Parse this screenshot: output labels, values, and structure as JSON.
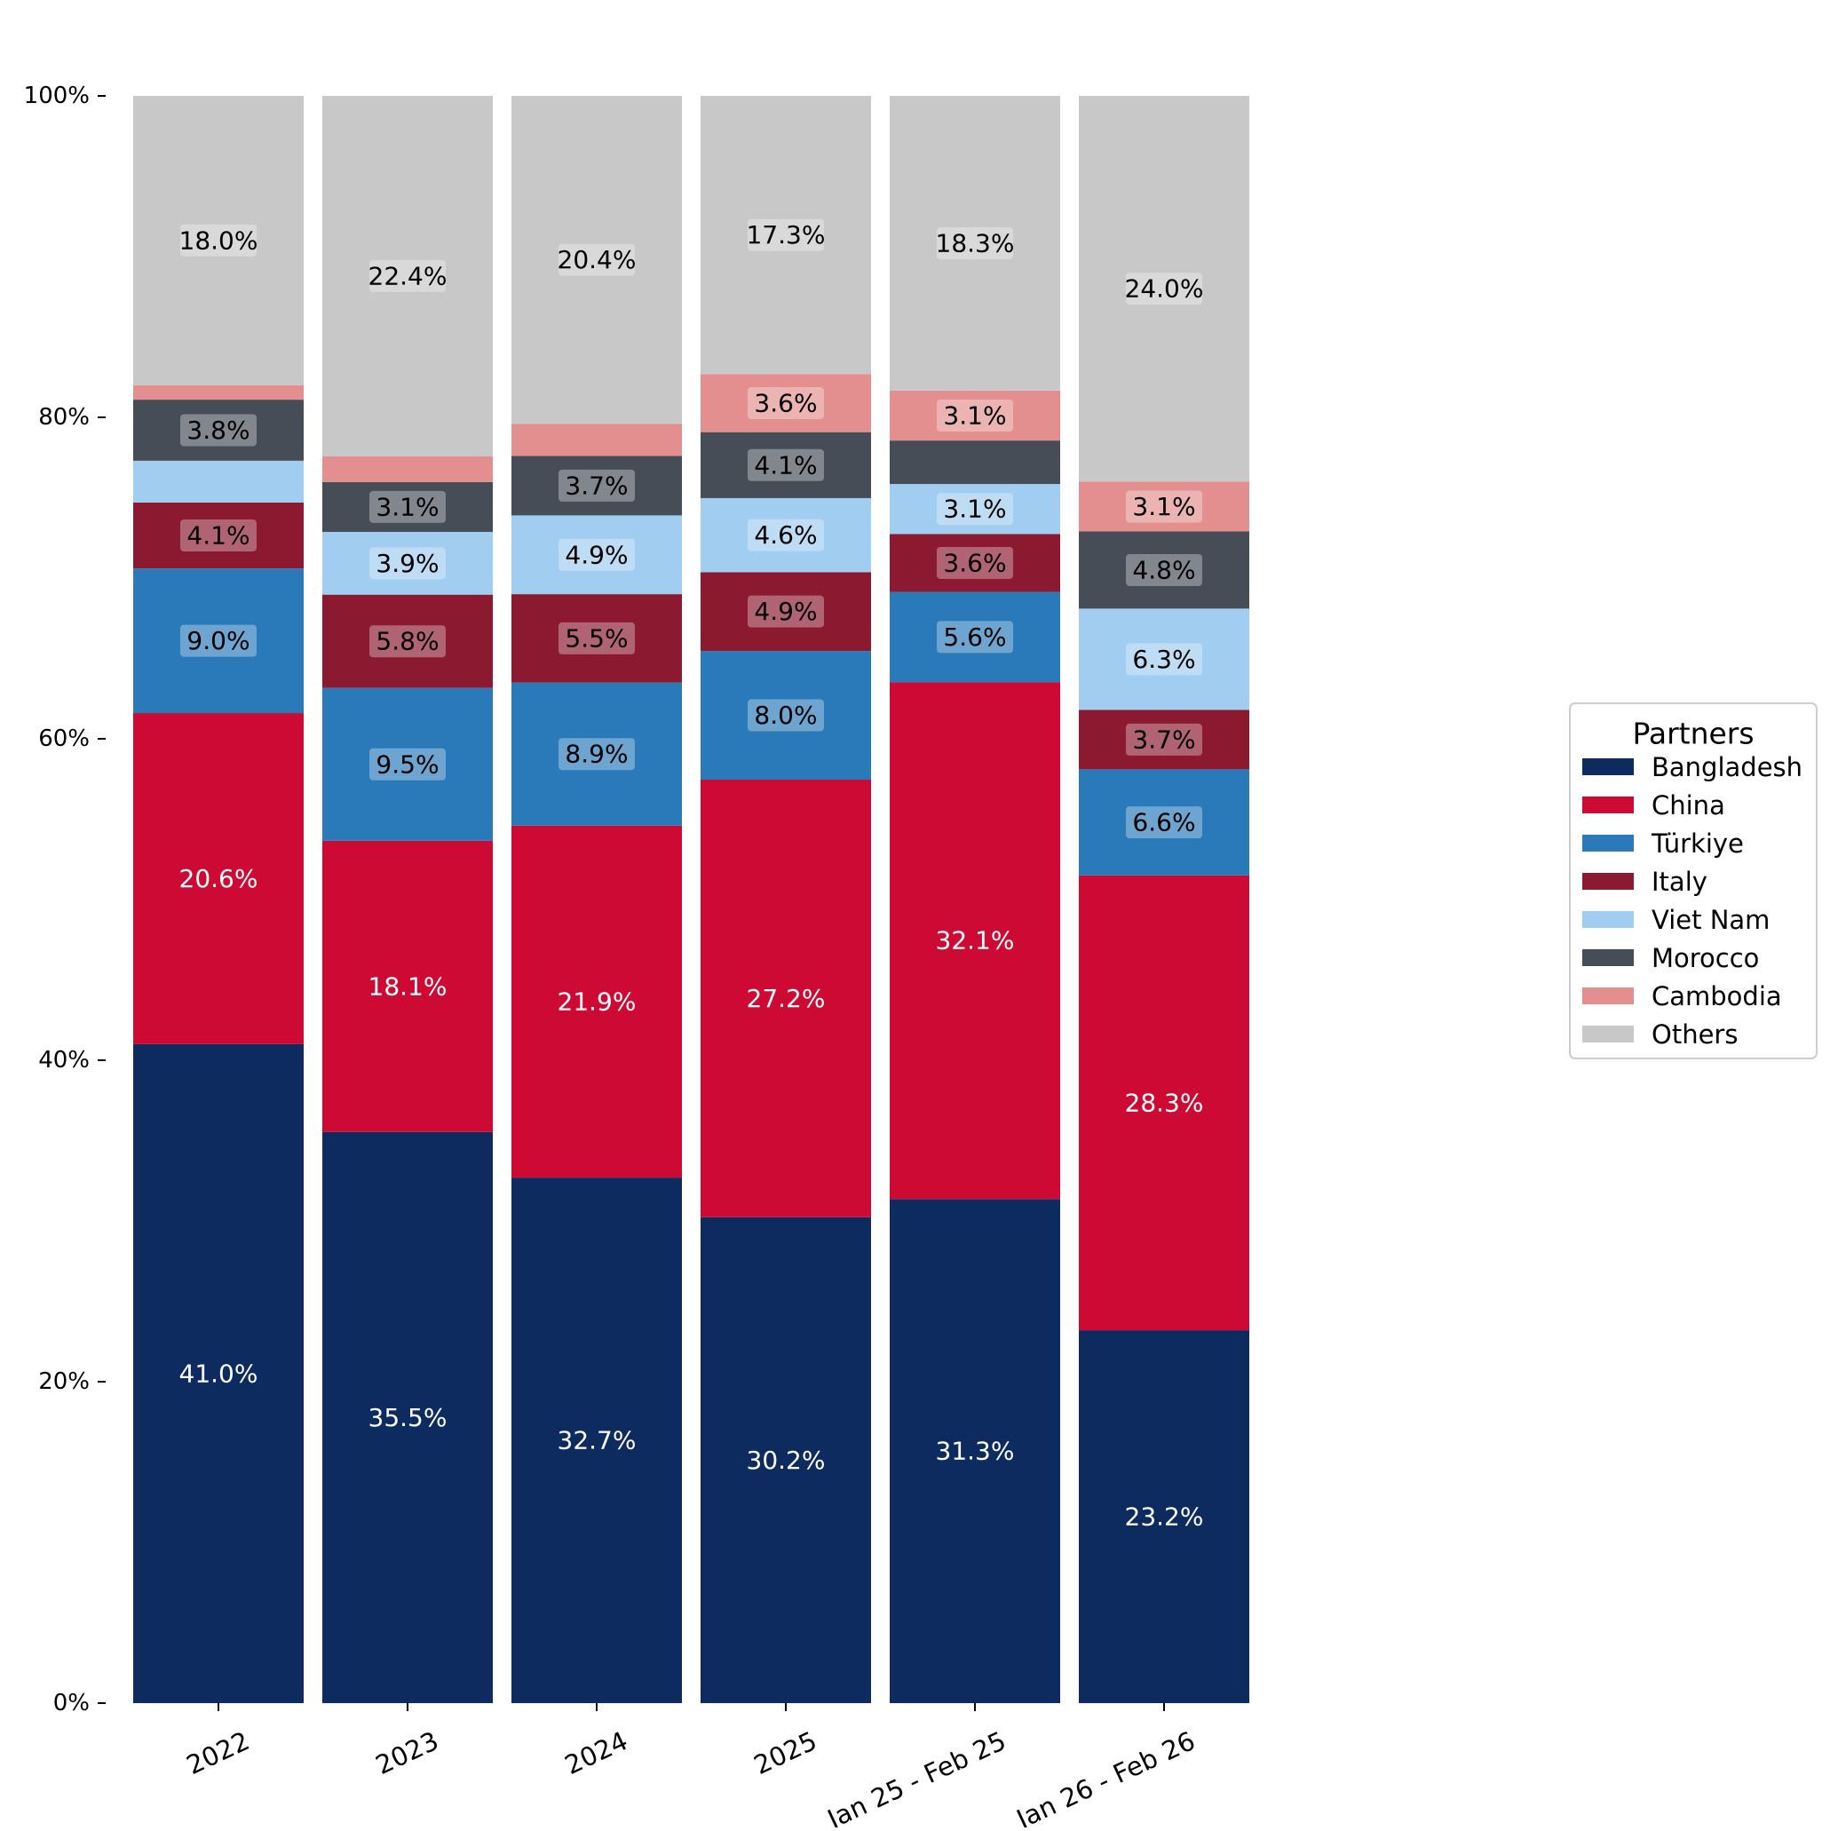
{
  "chart_data": {
    "type": "bar",
    "stacked": true,
    "categories": [
      "2022",
      "2023",
      "2024",
      "2025",
      "Jan 25 - Feb 25",
      "Jan 26 - Feb 26"
    ],
    "series": [
      {
        "name": "Bangladesh",
        "color": "#0d2b5e",
        "values": [
          41.0,
          35.5,
          32.7,
          30.2,
          31.3,
          23.2
        ],
        "labels": [
          "41.0%",
          "35.5%",
          "32.7%",
          "30.2%",
          "31.3%",
          "23.2%"
        ]
      },
      {
        "name": "China",
        "color": "#cc0a33",
        "values": [
          20.6,
          18.1,
          21.9,
          27.2,
          32.1,
          28.3
        ],
        "labels": [
          "20.6%",
          "18.1%",
          "21.9%",
          "27.2%",
          "32.1%",
          "28.3%"
        ]
      },
      {
        "name": "Türkiye",
        "color": "#2a7aba",
        "values": [
          9.0,
          9.5,
          8.9,
          8.0,
          5.6,
          6.6
        ],
        "labels": [
          "9.0%",
          "9.5%",
          "8.9%",
          "8.0%",
          "5.6%",
          "6.6%"
        ]
      },
      {
        "name": "Italy",
        "color": "#8b1a30",
        "values": [
          4.1,
          5.8,
          5.5,
          4.9,
          3.6,
          3.7
        ],
        "labels": [
          "4.1%",
          "5.8%",
          "5.5%",
          "4.9%",
          "3.6%",
          "3.7%"
        ]
      },
      {
        "name": "Viet Nam",
        "color": "#a0cdf0",
        "values": [
          2.6,
          3.9,
          4.9,
          4.6,
          3.1,
          6.3
        ],
        "labels": [
          "",
          "3.9%",
          "4.9%",
          "4.6%",
          "3.1%",
          "6.3%"
        ]
      },
      {
        "name": "Morocco",
        "color": "#474d57",
        "values": [
          3.8,
          3.1,
          3.7,
          4.1,
          2.7,
          4.8
        ],
        "labels": [
          "3.8%",
          "3.1%",
          "3.7%",
          "4.1%",
          "",
          "4.8%"
        ]
      },
      {
        "name": "Cambodia",
        "color": "#e38f8f",
        "values": [
          0.9,
          1.6,
          2.0,
          3.6,
          3.1,
          3.1
        ],
        "labels": [
          "",
          "",
          "",
          "3.6%",
          "3.1%",
          "3.1%"
        ]
      },
      {
        "name": "Others",
        "color": "#c8c8c8",
        "values": [
          18.0,
          22.4,
          20.4,
          17.3,
          18.3,
          24.0
        ],
        "labels": [
          "18.0%",
          "22.4%",
          "20.4%",
          "17.3%",
          "18.3%",
          "24.0%"
        ]
      }
    ],
    "yticks": [
      "0%",
      "20%",
      "40%",
      "60%",
      "80%",
      "100%"
    ],
    "ylim": [
      0,
      100
    ],
    "xlabel": "",
    "ylabel": "",
    "title": "",
    "legend": {
      "title": "Partners",
      "placement": "right"
    },
    "grid": false
  }
}
